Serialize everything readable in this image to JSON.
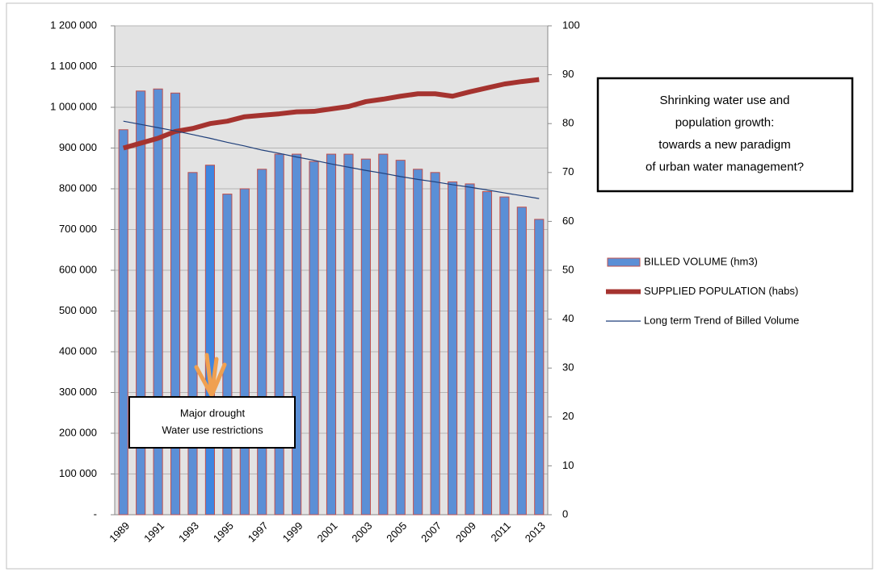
{
  "chart_data": {
    "type": "bar",
    "categories": [
      "1989",
      null,
      "1991",
      null,
      "1993",
      null,
      "1995",
      null,
      "1997",
      null,
      "1999",
      null,
      "2001",
      null,
      "2003",
      null,
      "2005",
      null,
      "2007",
      null,
      "2009",
      null,
      "2011",
      null,
      "2013"
    ],
    "series": [
      {
        "name": "BILLED VOLUME (hm3)",
        "type": "bar",
        "color": "#5b8fd6",
        "edge_color": "#c0504d",
        "bar_colors": [
          "#5b8fd6",
          "#5b8fd6",
          "#5b8fd6",
          "#5b8fd6",
          "#5b8fd6",
          "#3f86e0",
          "#5b8fd6",
          "#5b8fd6",
          "#5b8fd6",
          "#5b8fd6",
          "#5b8fd6",
          "#5b8fd6",
          "#5b8fd6",
          "#5b8fd6",
          "#5b8fd6",
          "#5b8fd6",
          "#5b8fd6",
          "#5b8fd6",
          "#5b8fd6",
          "#5b8fd6",
          "#5b8fd6",
          "#5b8fd6",
          "#5b8fd6",
          "#5b8fd6",
          "#5b8fd6"
        ],
        "values": [
          945000,
          1040000,
          1045000,
          1035000,
          840000,
          858000,
          787000,
          800000,
          848000,
          885000,
          885000,
          867000,
          885000,
          885000,
          873000,
          885000,
          870000,
          848000,
          840000,
          817000,
          812000,
          793000,
          780000,
          755000,
          725000
        ]
      },
      {
        "name": "SUPPLIED POPULATION (habs)",
        "type": "line",
        "axis": "y2",
        "color": "#a5332f",
        "values": [
          75,
          76,
          77,
          78.4,
          79,
          80,
          80.5,
          81.4,
          81.7,
          82,
          82.4,
          82.5,
          83,
          83.5,
          84.5,
          85,
          85.6,
          86.1,
          86.1,
          85.6,
          86.5,
          87.3,
          88.1,
          88.6,
          89
        ]
      },
      {
        "name": "Long term Trend of Billed Volume",
        "type": "line",
        "color": "#1f3f7a",
        "values": [
          966000,
          958000,
          950000,
          942000,
          933000,
          924000,
          914000,
          905000,
          895000,
          887000,
          878000,
          870000,
          861000,
          853000,
          845000,
          838000,
          830000,
          823000,
          817000,
          810000,
          804000,
          797000,
          790000,
          783000,
          776000
        ]
      }
    ],
    "ylim": [
      0,
      1200000
    ],
    "yticks": [
      {
        "value": 0,
        "label": "-"
      },
      {
        "value": 100000,
        "label": "100 000"
      },
      {
        "value": 200000,
        "label": "200 000"
      },
      {
        "value": 300000,
        "label": "300 000"
      },
      {
        "value": 400000,
        "label": "400 000"
      },
      {
        "value": 500000,
        "label": "500 000"
      },
      {
        "value": 600000,
        "label": "600 000"
      },
      {
        "value": 700000,
        "label": "700 000"
      },
      {
        "value": 800000,
        "label": "800 000"
      },
      {
        "value": 900000,
        "label": "900 000"
      },
      {
        "value": 1000000,
        "label": "1 000 000"
      },
      {
        "value": 1100000,
        "label": "1 100 000"
      },
      {
        "value": 1200000,
        "label": "1 200 000"
      }
    ],
    "y2lim": [
      0,
      100
    ],
    "y2ticks": [
      0,
      10,
      20,
      30,
      40,
      50,
      60,
      70,
      80,
      90,
      100
    ],
    "grid": true,
    "legend": "right",
    "annotations": [
      {
        "lines": [
          "Shrinking water use and",
          "population growth:",
          "towards a new paradigm",
          "of urban water management?"
        ]
      },
      {
        "lines": [
          "Major drought",
          "Water use restrictions"
        ]
      }
    ]
  }
}
